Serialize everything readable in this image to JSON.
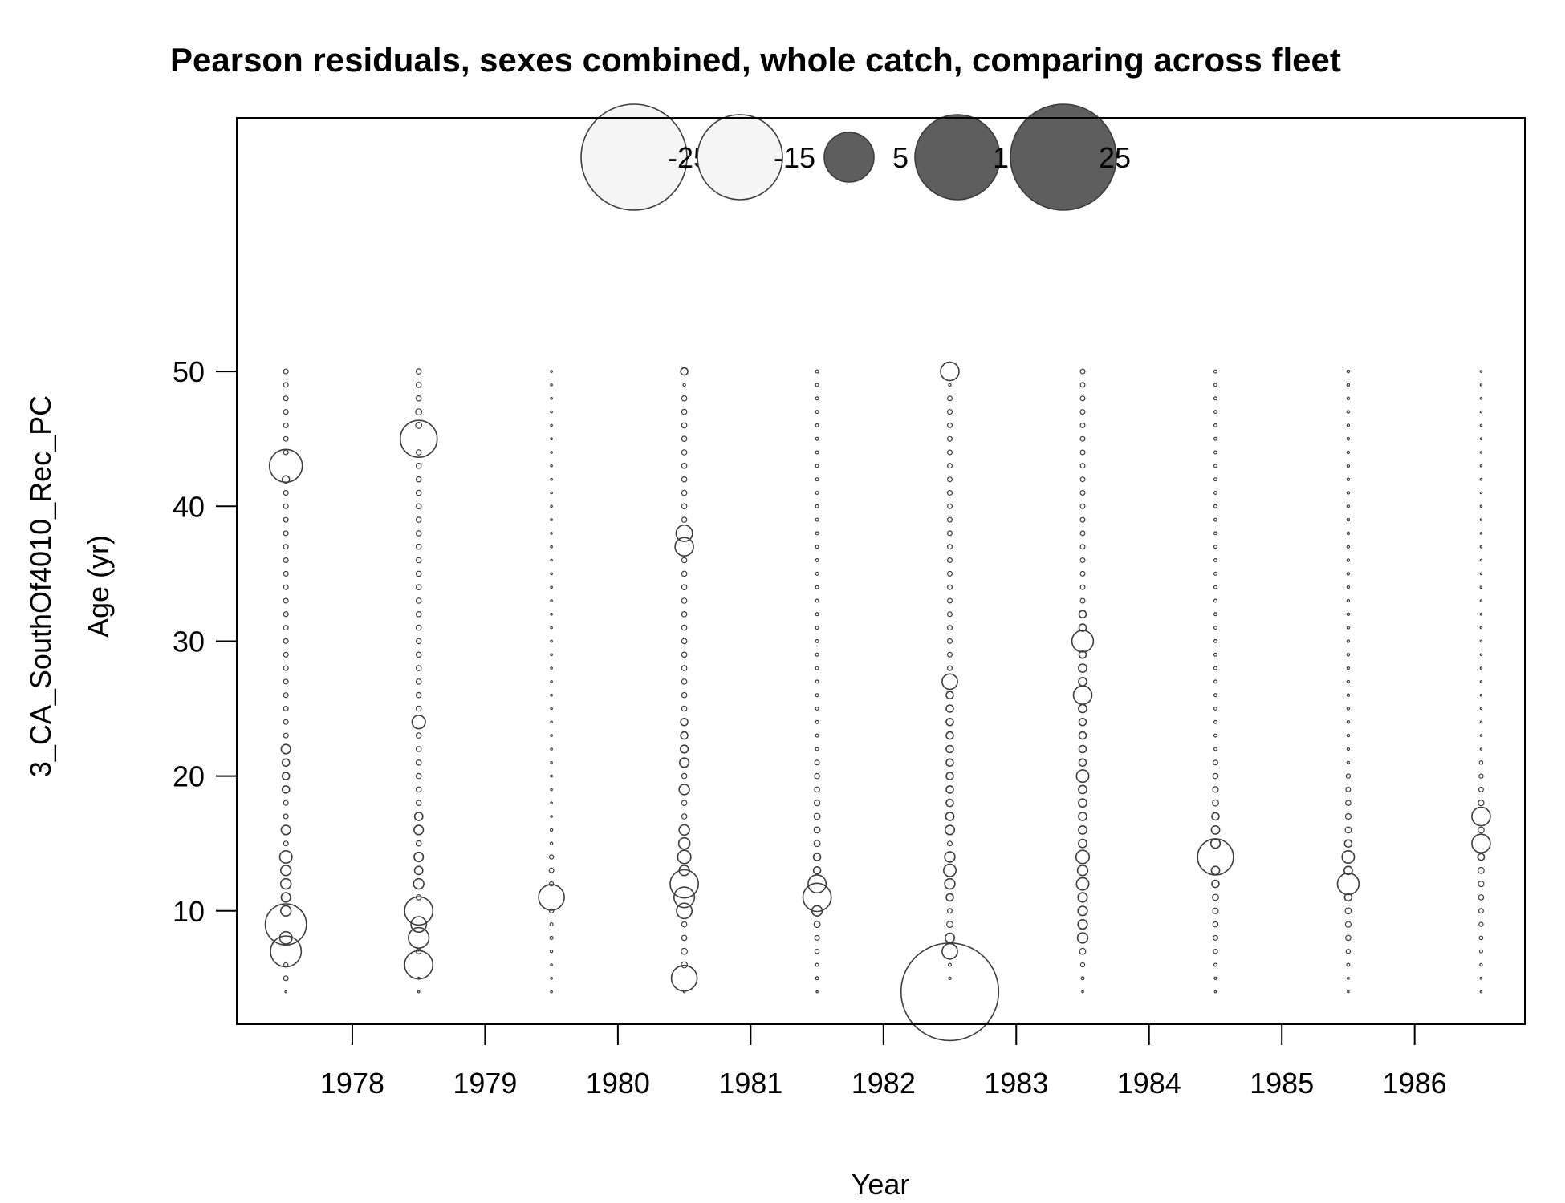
{
  "chart_data": {
    "type": "scatter",
    "subtype": "bubble",
    "title": "Pearson residuals, sexes combined, whole catch, comparing across fleet",
    "xlabel": "Year",
    "ylabel_fleet": "3_CA_SouthOf4010_Rec_PC",
    "ylabel": "Age (yr)",
    "x_ticks": [
      "1978",
      "1979",
      "1980",
      "1981",
      "1982",
      "1983",
      "1984",
      "1985",
      "1986"
    ],
    "y_ticks": [
      "10",
      "20",
      "30",
      "40",
      "50"
    ],
    "xlim": [
      1977.13,
      1986.83
    ],
    "ylim": [
      1.6,
      68.8
    ],
    "ages": [
      4,
      50
    ],
    "legend": {
      "labels": [
        "-25",
        "-15",
        "5",
        "15",
        "25"
      ],
      "values": [
        -25,
        -15,
        5,
        15,
        25
      ],
      "position": "top"
    },
    "colors": {
      "positive": "#5e5e5e",
      "negative": "#f5f5f5",
      "edge": "#3c3c3c"
    },
    "series": [
      {
        "x": 1977.5,
        "default": 0.9,
        "sizes": {
          "4": 0.35,
          "6": 0.8,
          "7": 6,
          "8": 2.4,
          "9": 8,
          "10": 2,
          "11": 1.8,
          "12": 2,
          "13": 2,
          "14": 2.4,
          "16": 1.8,
          "19": 1.4,
          "20": 1.4,
          "21": 1.4,
          "22": 1.8,
          "42": 1.4,
          "43": 6.4,
          "44": 0.9,
          "45": 0.9
        }
      },
      {
        "x": 1978.5,
        "default": 1.0,
        "sizes": {
          "4": 0.35,
          "5": 0.4,
          "6": 5.5,
          "8": 4,
          "9": 3,
          "10": 5.5,
          "12": 2,
          "13": 1.6,
          "14": 1.8,
          "16": 1.8,
          "17": 1.6,
          "24": 2.6,
          "45": 7.2,
          "46": 1.2,
          "47": 1.2
        }
      },
      {
        "x": 1979.5,
        "default": 0.3,
        "sizes": {
          "4": 0.2,
          "7": 0.5,
          "8": 0.6,
          "9": 0.6,
          "10": 0.8,
          "11": 5,
          "12": 0.8,
          "13": 0.9,
          "14": 0.8,
          "15": 0.5,
          "16": 0.5
        }
      },
      {
        "x": 1980.5,
        "default": 1.0,
        "sizes": {
          "4": 0.35,
          "5": 5,
          "6": 1.2,
          "7": 1.2,
          "10": 3,
          "11": 4,
          "12": 5.5,
          "13": 2,
          "14": 2.6,
          "15": 2.2,
          "16": 2,
          "19": 2,
          "21": 1.8,
          "22": 1.5,
          "23": 1.4,
          "24": 1.4,
          "37": 3.6,
          "38": 3.2,
          "49": 0.5,
          "50": 1.4
        }
      },
      {
        "x": 1981.5,
        "default": 0.6,
        "sizes": {
          "4": 0.3,
          "7": 0.8,
          "8": 0.9,
          "9": 1.2,
          "10": 2,
          "11": 5.5,
          "12": 3.5,
          "13": 1.4,
          "14": 1.4,
          "15": 1.2,
          "16": 1.2,
          "17": 1.2,
          "18": 1.1,
          "19": 1,
          "20": 1,
          "21": 0.9
        }
      },
      {
        "x": 1982.5,
        "default": 0.9,
        "sizes": {
          "4": 19,
          "5": 0.5,
          "6": 0.6,
          "7": 3,
          "8": 1.8,
          "9": 1.2,
          "11": 1.4,
          "12": 2,
          "13": 2.4,
          "14": 2,
          "16": 1.8,
          "17": 1.6,
          "18": 1.4,
          "19": 1.4,
          "20": 1.4,
          "21": 1.4,
          "22": 1.4,
          "23": 1.4,
          "24": 1.4,
          "25": 1.4,
          "26": 1.4,
          "27": 3,
          "49": 0.5,
          "50": 3.6
        }
      },
      {
        "x": 1983.5,
        "default": 0.9,
        "sizes": {
          "4": 0.35,
          "5": 0.6,
          "6": 0.8,
          "7": 1.2,
          "8": 2,
          "9": 1.8,
          "10": 1.8,
          "11": 1.8,
          "12": 2.4,
          "13": 2,
          "14": 2.6,
          "15": 1.6,
          "16": 1.6,
          "17": 1.6,
          "18": 1.6,
          "19": 1.6,
          "20": 2.4,
          "21": 1.4,
          "22": 1.4,
          "23": 1.4,
          "24": 1.4,
          "25": 1.6,
          "26": 3.6,
          "27": 1.6,
          "28": 1.6,
          "29": 1.4,
          "30": 4.2,
          "31": 1.4,
          "32": 1.4
        }
      },
      {
        "x": 1984.5,
        "default": 0.6,
        "sizes": {
          "4": 0.3,
          "5": 0.5,
          "6": 0.6,
          "7": 0.8,
          "8": 0.9,
          "9": 1,
          "10": 1.1,
          "11": 1.2,
          "12": 1.4,
          "13": 1.6,
          "14": 7,
          "15": 1.8,
          "16": 1.6,
          "17": 1.4,
          "18": 1.2,
          "19": 1.1,
          "20": 1,
          "21": 0.9
        }
      },
      {
        "x": 1985.5,
        "default": 0.5,
        "sizes": {
          "4": 0.3,
          "5": 0.4,
          "6": 0.6,
          "7": 0.8,
          "8": 1,
          "9": 1.1,
          "10": 1.2,
          "11": 1.4,
          "12": 4.2,
          "13": 1.6,
          "14": 2.4,
          "15": 1.4,
          "16": 1.2,
          "17": 1.1,
          "18": 1,
          "19": 0.9,
          "20": 0.8
        }
      },
      {
        "x": 1986.5,
        "default": 0.35,
        "sizes": {
          "4": 0.3,
          "5": 0.4,
          "6": 0.5,
          "7": 0.6,
          "8": 0.7,
          "9": 0.8,
          "10": 0.9,
          "11": 1,
          "12": 1.1,
          "13": 1.2,
          "14": 1.3,
          "15": 3.6,
          "16": 1.2,
          "17": 3.6,
          "18": 1.1,
          "19": 0.9,
          "20": 0.8,
          "21": 0.7
        }
      }
    ]
  }
}
